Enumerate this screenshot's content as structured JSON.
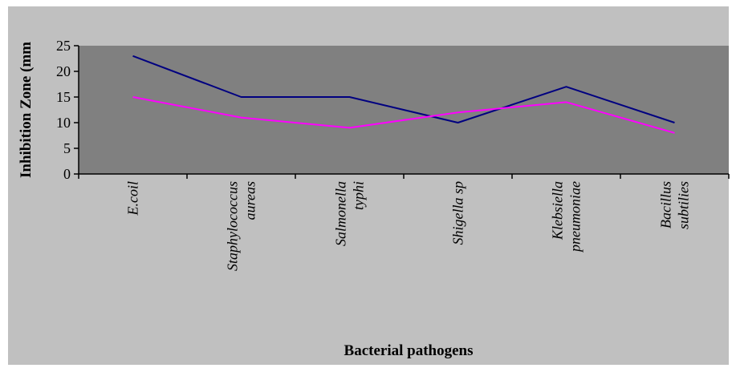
{
  "chart_data": {
    "type": "line",
    "title": "",
    "xlabel": "Bacterial pathogens",
    "ylabel": "Inhibition Zone (mm",
    "ylim": [
      0,
      25
    ],
    "yticks": [
      0,
      5,
      10,
      15,
      20,
      25
    ],
    "grid": false,
    "legend": "none",
    "categories": [
      [
        "E.coil"
      ],
      [
        "Staphylococcus",
        "aureas"
      ],
      [
        "Salmonella",
        "typhi"
      ],
      [
        "Shigella sp"
      ],
      [
        "Klebsiella",
        "pneumoniae"
      ],
      [
        "Bacillus",
        "subtilies"
      ]
    ],
    "series": [
      {
        "values": [
          23,
          15,
          15,
          10,
          17,
          10
        ]
      },
      {
        "values": [
          15,
          11,
          9,
          12,
          14,
          8
        ]
      }
    ],
    "colors": {
      "outer_background": "#c0c0c0",
      "plot_background": "#808080",
      "series": [
        "#000080",
        "#ff00ff"
      ],
      "axis": "#000000"
    }
  }
}
